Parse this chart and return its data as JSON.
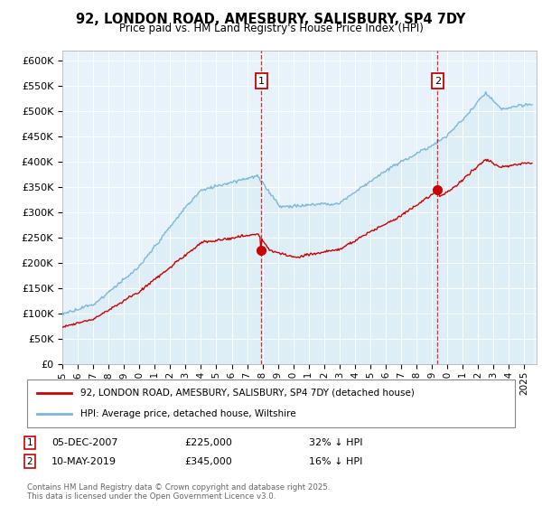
{
  "title": "92, LONDON ROAD, AMESBURY, SALISBURY, SP4 7DY",
  "subtitle": "Price paid vs. HM Land Registry's House Price Index (HPI)",
  "ylim": [
    0,
    620000
  ],
  "yticks": [
    0,
    50000,
    100000,
    150000,
    200000,
    250000,
    300000,
    350000,
    400000,
    450000,
    500000,
    550000,
    600000
  ],
  "xlim_start": 1995.0,
  "xlim_end": 2025.8,
  "hpi_color": "#7ab8d9",
  "hpi_fill": "#ddeef7",
  "price_color": "#cc0000",
  "vline_color": "#cc0000",
  "bg_color": "#e8f2fa",
  "grid_color": "#ffffff",
  "transaction1": {
    "date_num": 2007.92,
    "price": 225000,
    "label": "1",
    "pct": "32% ↓ HPI",
    "date_str": "05-DEC-2007",
    "price_str": "£225,000"
  },
  "transaction2": {
    "date_num": 2019.37,
    "price": 345000,
    "label": "2",
    "pct": "16% ↓ HPI",
    "date_str": "10-MAY-2019",
    "price_str": "£345,000"
  },
  "legend_line1": "92, LONDON ROAD, AMESBURY, SALISBURY, SP4 7DY (detached house)",
  "legend_line2": "HPI: Average price, detached house, Wiltshire",
  "footnote": "Contains HM Land Registry data © Crown copyright and database right 2025.\nThis data is licensed under the Open Government Licence v3.0.",
  "marker_size": 7
}
